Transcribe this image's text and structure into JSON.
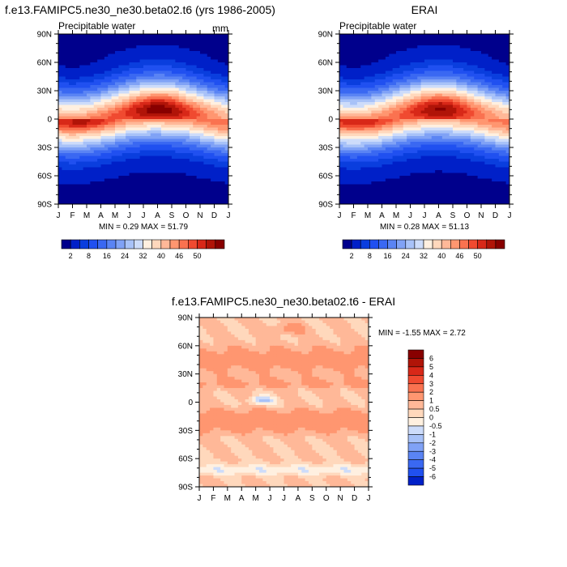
{
  "panels": [
    {
      "title": "f.e13.FAMIPC5.ne30_ne30.beta02.t6 (yrs 1986-2005)",
      "subtitle_left": "Precipitable water",
      "subtitle_right": "mm",
      "stats": "MIN =  0.29 MAX =  51.79"
    },
    {
      "title": "ERAI",
      "subtitle_left": "Precipitable water",
      "subtitle_right": "",
      "stats": "MIN =  0.28 MAX =  51.13"
    },
    {
      "title": "f.e13.FAMIPC5.ne30_ne30.beta02.t6 - ERAI",
      "subtitle_left": "",
      "subtitle_right": "",
      "stats": "MIN =  -1.55 MAX =   2.72"
    }
  ],
  "chart_data": [
    {
      "type": "heatmap",
      "title": "f.e13.FAMIPC5.ne30_ne30.beta02.t6 (yrs 1986-2005)",
      "x_ticks": [
        "J",
        "F",
        "M",
        "A",
        "M",
        "J",
        "J",
        "A",
        "S",
        "O",
        "N",
        "D",
        "J"
      ],
      "y_ticks": [
        "90N",
        "60N",
        "30N",
        "0",
        "30S",
        "60S",
        "90S"
      ],
      "ylim": [
        -90,
        90
      ],
      "min": 0.29,
      "max": 51.79,
      "colorbar": {
        "orientation": "horizontal",
        "tick_labels": [
          "2",
          "8",
          "16",
          "24",
          "32",
          "40",
          "46",
          "50"
        ],
        "colors": [
          "#00008c",
          "#0020c8",
          "#0a3ede",
          "#2050f0",
          "#3a68f2",
          "#5a84f4",
          "#80a2f6",
          "#a8c2f8",
          "#cddcfa",
          "#fff0e0",
          "#ffd8bc",
          "#ffb898",
          "#ff9670",
          "#fa7250",
          "#f04a30",
          "#d82818",
          "#b01408",
          "#880000"
        ]
      }
    },
    {
      "type": "heatmap",
      "title": "ERAI",
      "x_ticks": [
        "J",
        "F",
        "M",
        "A",
        "M",
        "J",
        "J",
        "A",
        "S",
        "O",
        "N",
        "D",
        "J"
      ],
      "y_ticks": [
        "90N",
        "60N",
        "30N",
        "0",
        "30S",
        "60S",
        "90S"
      ],
      "ylim": [
        -90,
        90
      ],
      "min": 0.28,
      "max": 51.13,
      "colorbar": {
        "orientation": "horizontal",
        "tick_labels": [
          "2",
          "8",
          "16",
          "24",
          "32",
          "40",
          "46",
          "50"
        ],
        "colors": [
          "#00008c",
          "#0020c8",
          "#0a3ede",
          "#2050f0",
          "#3a68f2",
          "#5a84f4",
          "#80a2f6",
          "#a8c2f8",
          "#cddcfa",
          "#fff0e0",
          "#ffd8bc",
          "#ffb898",
          "#ff9670",
          "#fa7250",
          "#f04a30",
          "#d82818",
          "#b01408",
          "#880000"
        ]
      }
    },
    {
      "type": "heatmap",
      "title": "f.e13.FAMIPC5.ne30_ne30.beta02.t6 - ERAI",
      "x_ticks": [
        "J",
        "F",
        "M",
        "A",
        "M",
        "J",
        "J",
        "A",
        "S",
        "O",
        "N",
        "D",
        "J"
      ],
      "y_ticks": [
        "90N",
        "60N",
        "30N",
        "0",
        "30S",
        "60S",
        "90S"
      ],
      "ylim": [
        -90,
        90
      ],
      "min": -1.55,
      "max": 2.72,
      "colorbar": {
        "orientation": "vertical",
        "tick_labels": [
          "6",
          "5",
          "4",
          "3",
          "2",
          "1",
          "0.5",
          "0",
          "-0.5",
          "-1",
          "-2",
          "-3",
          "-4",
          "-5",
          "-6"
        ],
        "colors": [
          "#880000",
          "#b01408",
          "#d82818",
          "#f04a30",
          "#fa7250",
          "#ff9670",
          "#ffb898",
          "#ffd8bc",
          "#fff0e0",
          "#cddcfa",
          "#a8c2f8",
          "#80a2f6",
          "#5a84f4",
          "#3a68f2",
          "#2050f0",
          "#0020c8"
        ]
      }
    }
  ]
}
